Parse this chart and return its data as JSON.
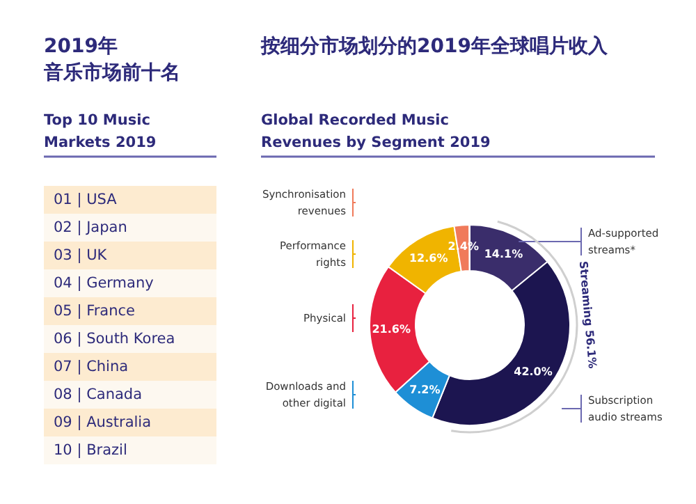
{
  "chart_data": [
    {
      "type": "other",
      "title": "2019年音乐市场前十名",
      "subtitle": "Top 10 Music\nMarkets 2019",
      "annotations": [
        "01 | USA",
        "02 | Japan",
        "03 | UK",
        "04 | Germany",
        "05 | France",
        "06 | South Korea",
        "07 | China",
        "08 | Canada",
        "09 | Australia",
        "10 | Brazil"
      ]
    },
    {
      "type": "donut",
      "title": "按细分市场划分的2019年全球唱片收入",
      "subtitle": "Global Recorded Music\nRevenues by Segment 2019",
      "categories": [
        "Ad-supported\nstreams*",
        "Subscription\naudio streams",
        "Downloads and\nother digital",
        "Physical",
        "Performance\nrights",
        "Synchronisation\nrevenues"
      ],
      "values": [
        14.1,
        42.0,
        7.2,
        21.6,
        12.6,
        2.4
      ],
      "colors": [
        "#3a2d6b",
        "#1c1550",
        "#1e8fd6",
        "#e8213f",
        "#f0b400",
        "#f07a5a"
      ],
      "value_labels": [
        "14.1%",
        "42.0%",
        "7.2%",
        "21.6%",
        "12.6%",
        "2.4%"
      ],
      "legend": "left",
      "annotations": [
        "Streaming 56.1%"
      ]
    }
  ]
}
